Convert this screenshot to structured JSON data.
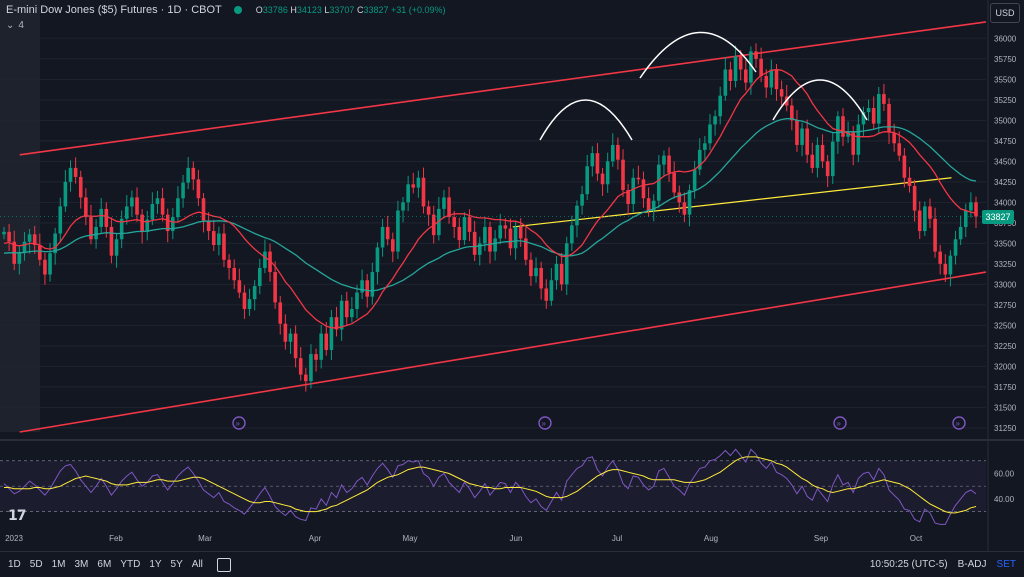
{
  "header": {
    "symbol_title": "E-mini Dow Jones ($5) Futures · 1D · CBOT",
    "ohlc": {
      "o_label": "O",
      "o": "33786",
      "h_label": "H",
      "h": "34123",
      "l_label": "L",
      "l": "33707",
      "c_label": "C",
      "c": "33827",
      "change": "+31 (+0.09%)"
    },
    "collapse_indicator": "⌄",
    "indicator_count": "4",
    "currency": "USD"
  },
  "current_price_tag": "33827",
  "x_axis": {
    "labels": [
      "2023",
      "Feb",
      "Mar",
      "Apr",
      "May",
      "Jun",
      "Jul",
      "Aug",
      "Sep",
      "Oct"
    ]
  },
  "bottom_toolbar": {
    "ranges": [
      "1D",
      "5D",
      "1M",
      "3M",
      "6M",
      "YTD",
      "1Y",
      "5Y",
      "All"
    ],
    "time": "10:50:25 (UTC-5)",
    "adj": "B-ADJ",
    "set": "SET"
  },
  "colors": {
    "up": "#089981",
    "down": "#f23645",
    "bg": "#131722",
    "ema_fast": "#f23645",
    "ema_slow": "#26a69a",
    "trend_channel": "#f23645",
    "neckline": "#ffeb3b",
    "rsi": "#7e57c2",
    "rsi_ma": "#ffeb3b"
  },
  "chart_data": [
    {
      "type": "candlestick",
      "title": "",
      "y_ticks": [
        31250,
        31500,
        31750,
        32000,
        32250,
        32500,
        32750,
        33000,
        33250,
        33500,
        33750,
        34000,
        34250,
        34500,
        34750,
        35000,
        35250,
        35500,
        35750,
        36000
      ],
      "y_tick_labels": [
        "31250",
        "31500",
        "31750",
        "32000",
        "32250",
        "32500",
        "32750",
        "33000",
        "33250",
        "33500",
        "33750",
        "34000",
        "34250",
        "34500",
        "34750",
        "35000",
        "35250",
        "35500",
        "35750",
        "36000"
      ],
      "ylim": [
        31200,
        36150
      ],
      "closes": [
        33640,
        33520,
        33250,
        33380,
        33520,
        33610,
        33480,
        33300,
        33120,
        33380,
        33620,
        33950,
        34250,
        34420,
        34310,
        34060,
        33820,
        33550,
        33700,
        33920,
        33700,
        33350,
        33550,
        33800,
        33950,
        34060,
        33850,
        33640,
        33790,
        33980,
        34050,
        33850,
        33650,
        33820,
        34050,
        34240,
        34420,
        34280,
        34050,
        33780,
        33650,
        33480,
        33620,
        33300,
        33200,
        33050,
        32900,
        32700,
        32820,
        32980,
        33200,
        33400,
        33150,
        32780,
        32520,
        32300,
        32400,
        32100,
        31900,
        31820,
        32150,
        32080,
        32400,
        32200,
        32600,
        32450,
        32800,
        32600,
        32700,
        32900,
        33050,
        32850,
        33150,
        33450,
        33700,
        33550,
        33400,
        33900,
        34000,
        34220,
        34180,
        34300,
        33950,
        33850,
        33600,
        33920,
        34060,
        33820,
        33700,
        33540,
        33820,
        33640,
        33360,
        33500,
        33700,
        33400,
        33560,
        33720,
        33680,
        33440,
        33700,
        33560,
        33300,
        33100,
        33200,
        32950,
        32800,
        33050,
        33250,
        33000,
        33500,
        33720,
        33960,
        34100,
        34440,
        34600,
        34350,
        34220,
        34500,
        34700,
        34520,
        34150,
        33980,
        34300,
        34280,
        34050,
        33900,
        34020,
        34460,
        34570,
        34360,
        34120,
        34000,
        33850,
        34150,
        34400,
        34640,
        34720,
        34950,
        35050,
        35300,
        35620,
        35480,
        35780,
        35620,
        35460,
        35840,
        35750,
        35540,
        35400,
        35620,
        35380,
        35290,
        35180,
        35000,
        34700,
        34900,
        34580,
        34420,
        34700,
        34500,
        34320,
        34740,
        35050,
        34800,
        34850,
        34580,
        34950,
        35100,
        35150,
        34960,
        35320,
        35200,
        34850,
        34720,
        34570,
        34300,
        34200,
        33900,
        33650,
        33950,
        33800,
        33400,
        33250,
        33120,
        33350,
        33550,
        33700,
        33900,
        34000,
        33827
      ],
      "ema_fast": [
        33500,
        33510,
        33480,
        33470,
        33480,
        33500,
        33500,
        33480,
        33440,
        33430,
        33450,
        33520,
        33610,
        33710,
        33780,
        33820,
        33840,
        33830,
        33830,
        33840,
        33830,
        33800,
        33770,
        33760,
        33770,
        33780,
        33790,
        33770,
        33760,
        33780,
        33790,
        33800,
        33780,
        33760,
        33760,
        33790,
        33830,
        33860,
        33880,
        33870,
        33850,
        33830,
        33820,
        33790,
        33760,
        33710,
        33640,
        33560,
        33490,
        33430,
        33380,
        33330,
        33290,
        33220,
        33130,
        33030,
        32960,
        32870,
        32780,
        32690,
        32630,
        32570,
        32530,
        32490,
        32470,
        32470,
        32480,
        32500,
        32520,
        32560,
        32600,
        32640,
        32710,
        32800,
        32910,
        32990,
        33070,
        33170,
        33260,
        33360,
        33450,
        33550,
        33620,
        33680,
        33720,
        33770,
        33820,
        33840,
        33860,
        33860,
        33860,
        33840,
        33820,
        33810,
        33810,
        33800,
        33790,
        33790,
        33780,
        33770,
        33770,
        33750,
        33710,
        33660,
        33620,
        33560,
        33480,
        33420,
        33380,
        33340,
        33340,
        33370,
        33420,
        33480,
        33580,
        33680,
        33770,
        33840,
        33910,
        33990,
        34070,
        34110,
        34130,
        34160,
        34190,
        34210,
        34220,
        34230,
        34270,
        34320,
        34350,
        34370,
        34380,
        34370,
        34380,
        34400,
        34450,
        34510,
        34600,
        34700,
        34800,
        34920,
        35030,
        35150,
        35260,
        35330,
        35410,
        35490,
        35550,
        35580,
        35610,
        35620,
        35610,
        35580,
        35540,
        35460,
        35400,
        35320,
        35210,
        35120,
        35040,
        34960,
        34900,
        34880,
        34870,
        34840,
        34810,
        34800,
        34800,
        34800,
        34810,
        34840,
        34860,
        34860,
        34850,
        34820,
        34780,
        34730,
        34660,
        34580,
        34510,
        34440,
        34350,
        34240,
        34140,
        34050,
        33980,
        33920,
        33900,
        33880,
        33870
      ],
      "ema_slow": [
        33380,
        33385,
        33385,
        33385,
        33390,
        33400,
        33405,
        33405,
        33400,
        33400,
        33410,
        33430,
        33460,
        33500,
        33540,
        33570,
        33590,
        33600,
        33610,
        33620,
        33630,
        33625,
        33620,
        33620,
        33625,
        33635,
        33645,
        33645,
        33650,
        33660,
        33670,
        33680,
        33680,
        33680,
        33690,
        33700,
        33720,
        33740,
        33760,
        33770,
        33770,
        33770,
        33775,
        33770,
        33760,
        33740,
        33710,
        33680,
        33650,
        33620,
        33595,
        33570,
        33550,
        33520,
        33480,
        33440,
        33400,
        33360,
        33310,
        33260,
        33220,
        33180,
        33140,
        33100,
        33060,
        33030,
        33000,
        32980,
        32960,
        32945,
        32935,
        32925,
        32920,
        32930,
        32950,
        32970,
        32990,
        33020,
        33050,
        33090,
        33130,
        33180,
        33220,
        33260,
        33290,
        33320,
        33360,
        33390,
        33410,
        33430,
        33450,
        33460,
        33460,
        33470,
        33480,
        33490,
        33500,
        33510,
        33520,
        33520,
        33530,
        33530,
        33520,
        33500,
        33480,
        33460,
        33430,
        33400,
        33380,
        33360,
        33350,
        33350,
        33360,
        33380,
        33420,
        33470,
        33520,
        33560,
        33610,
        33660,
        33710,
        33750,
        33780,
        33820,
        33850,
        33880,
        33900,
        33920,
        33950,
        33990,
        34030,
        34060,
        34080,
        34100,
        34120,
        34140,
        34170,
        34210,
        34260,
        34320,
        34380,
        34450,
        34520,
        34590,
        34660,
        34720,
        34780,
        34840,
        34890,
        34930,
        34960,
        34990,
        35010,
        35020,
        35020,
        35000,
        34990,
        34970,
        34940,
        34910,
        34890,
        34870,
        34850,
        34850,
        34860,
        34860,
        34860,
        34860,
        34870,
        34880,
        34890,
        34910,
        34920,
        34920,
        34920,
        34910,
        34890,
        34860,
        34820,
        34780,
        34730,
        34680,
        34620,
        34560,
        34500,
        34440,
        34390,
        34340,
        34300,
        34270,
        34260
      ],
      "trend_channel_upper": [
        [
          0.02,
          34580
        ],
        [
          1.0,
          36200
        ]
      ],
      "trend_channel_lower": [
        [
          0.02,
          31200
        ],
        [
          1.0,
          33150
        ]
      ],
      "neckline": [
        [
          0.52,
          33700
        ],
        [
          0.965,
          34300
        ]
      ],
      "head_shoulders_arcs": [
        "left-shoulder",
        "head",
        "right-shoulder"
      ],
      "event_markers": [
        "Feb 28",
        "Jun 5",
        "Sep 5",
        "Oct 10"
      ]
    },
    {
      "type": "line",
      "title": "",
      "name": "",
      "y_ticks": [
        40,
        60
      ],
      "y_tick_labels": [
        "40.00",
        "60.00"
      ],
      "ylim": [
        25,
        80
      ],
      "band": [
        30,
        70
      ],
      "rsi": [
        52,
        48,
        44,
        46,
        50,
        54,
        51,
        47,
        43,
        48,
        55,
        62,
        66,
        67,
        62,
        55,
        50,
        45,
        50,
        56,
        50,
        43,
        48,
        54,
        58,
        61,
        55,
        50,
        53,
        58,
        59,
        53,
        47,
        52,
        58,
        62,
        65,
        60,
        54,
        47,
        44,
        41,
        45,
        38,
        36,
        33,
        31,
        28,
        33,
        38,
        44,
        49,
        42,
        34,
        30,
        27,
        31,
        26,
        24,
        23,
        33,
        32,
        40,
        35,
        45,
        41,
        51,
        45,
        48,
        54,
        57,
        51,
        58,
        64,
        68,
        63,
        57,
        66,
        67,
        70,
        69,
        70,
        60,
        57,
        50,
        57,
        60,
        53,
        49,
        45,
        53,
        48,
        41,
        46,
        52,
        43,
        48,
        53,
        52,
        45,
        53,
        49,
        42,
        37,
        40,
        34,
        31,
        38,
        45,
        39,
        54,
        59,
        64,
        66,
        72,
        73,
        63,
        58,
        65,
        70,
        63,
        52,
        48,
        58,
        57,
        51,
        47,
        50,
        62,
        64,
        57,
        50,
        47,
        43,
        52,
        58,
        64,
        65,
        70,
        71,
        74,
        78,
        74,
        79,
        74,
        69,
        79,
        75,
        68,
        64,
        69,
        61,
        59,
        56,
        51,
        44,
        50,
        42,
        39,
        48,
        43,
        38,
        51,
        59,
        51,
        53,
        45,
        56,
        60,
        61,
        55,
        64,
        59,
        47,
        43,
        39,
        32,
        31,
        24,
        22,
        32,
        29,
        21,
        20,
        20,
        28,
        35,
        40,
        45,
        47,
        44
      ],
      "rsi_ma": [
        49,
        49,
        48,
        48,
        48,
        48,
        49,
        49,
        48,
        48,
        49,
        50,
        52,
        54,
        56,
        57,
        58,
        57,
        56,
        55,
        54,
        52,
        51,
        51,
        51,
        52,
        53,
        53,
        53,
        54,
        55,
        55,
        54,
        54,
        54,
        55,
        56,
        57,
        57,
        56,
        54,
        52,
        50,
        48,
        46,
        44,
        42,
        40,
        38,
        37,
        37,
        38,
        38,
        37,
        36,
        35,
        34,
        32,
        31,
        30,
        30,
        30,
        31,
        32,
        34,
        35,
        37,
        39,
        41,
        43,
        45,
        47,
        50,
        53,
        55,
        57,
        58,
        59,
        61,
        63,
        64,
        65,
        65,
        64,
        63,
        62,
        61,
        60,
        58,
        56,
        54,
        52,
        51,
        50,
        49,
        49,
        48,
        48,
        49,
        49,
        49,
        49,
        48,
        47,
        46,
        44,
        42,
        41,
        41,
        41,
        42,
        44,
        46,
        49,
        52,
        55,
        58,
        60,
        62,
        63,
        63,
        62,
        61,
        60,
        59,
        58,
        56,
        55,
        55,
        55,
        55,
        55,
        54,
        53,
        53,
        53,
        54,
        55,
        57,
        59,
        61,
        64,
        67,
        70,
        72,
        73,
        73,
        73,
        72,
        71,
        70,
        68,
        67,
        65,
        62,
        59,
        56,
        54,
        51,
        49,
        48,
        46,
        45,
        46,
        47,
        48,
        48,
        49,
        50,
        52,
        53,
        54,
        55,
        54,
        53,
        52,
        50,
        48,
        45,
        42,
        39,
        36,
        34,
        32,
        30,
        29,
        29,
        30,
        31,
        33,
        34
      ]
    }
  ]
}
